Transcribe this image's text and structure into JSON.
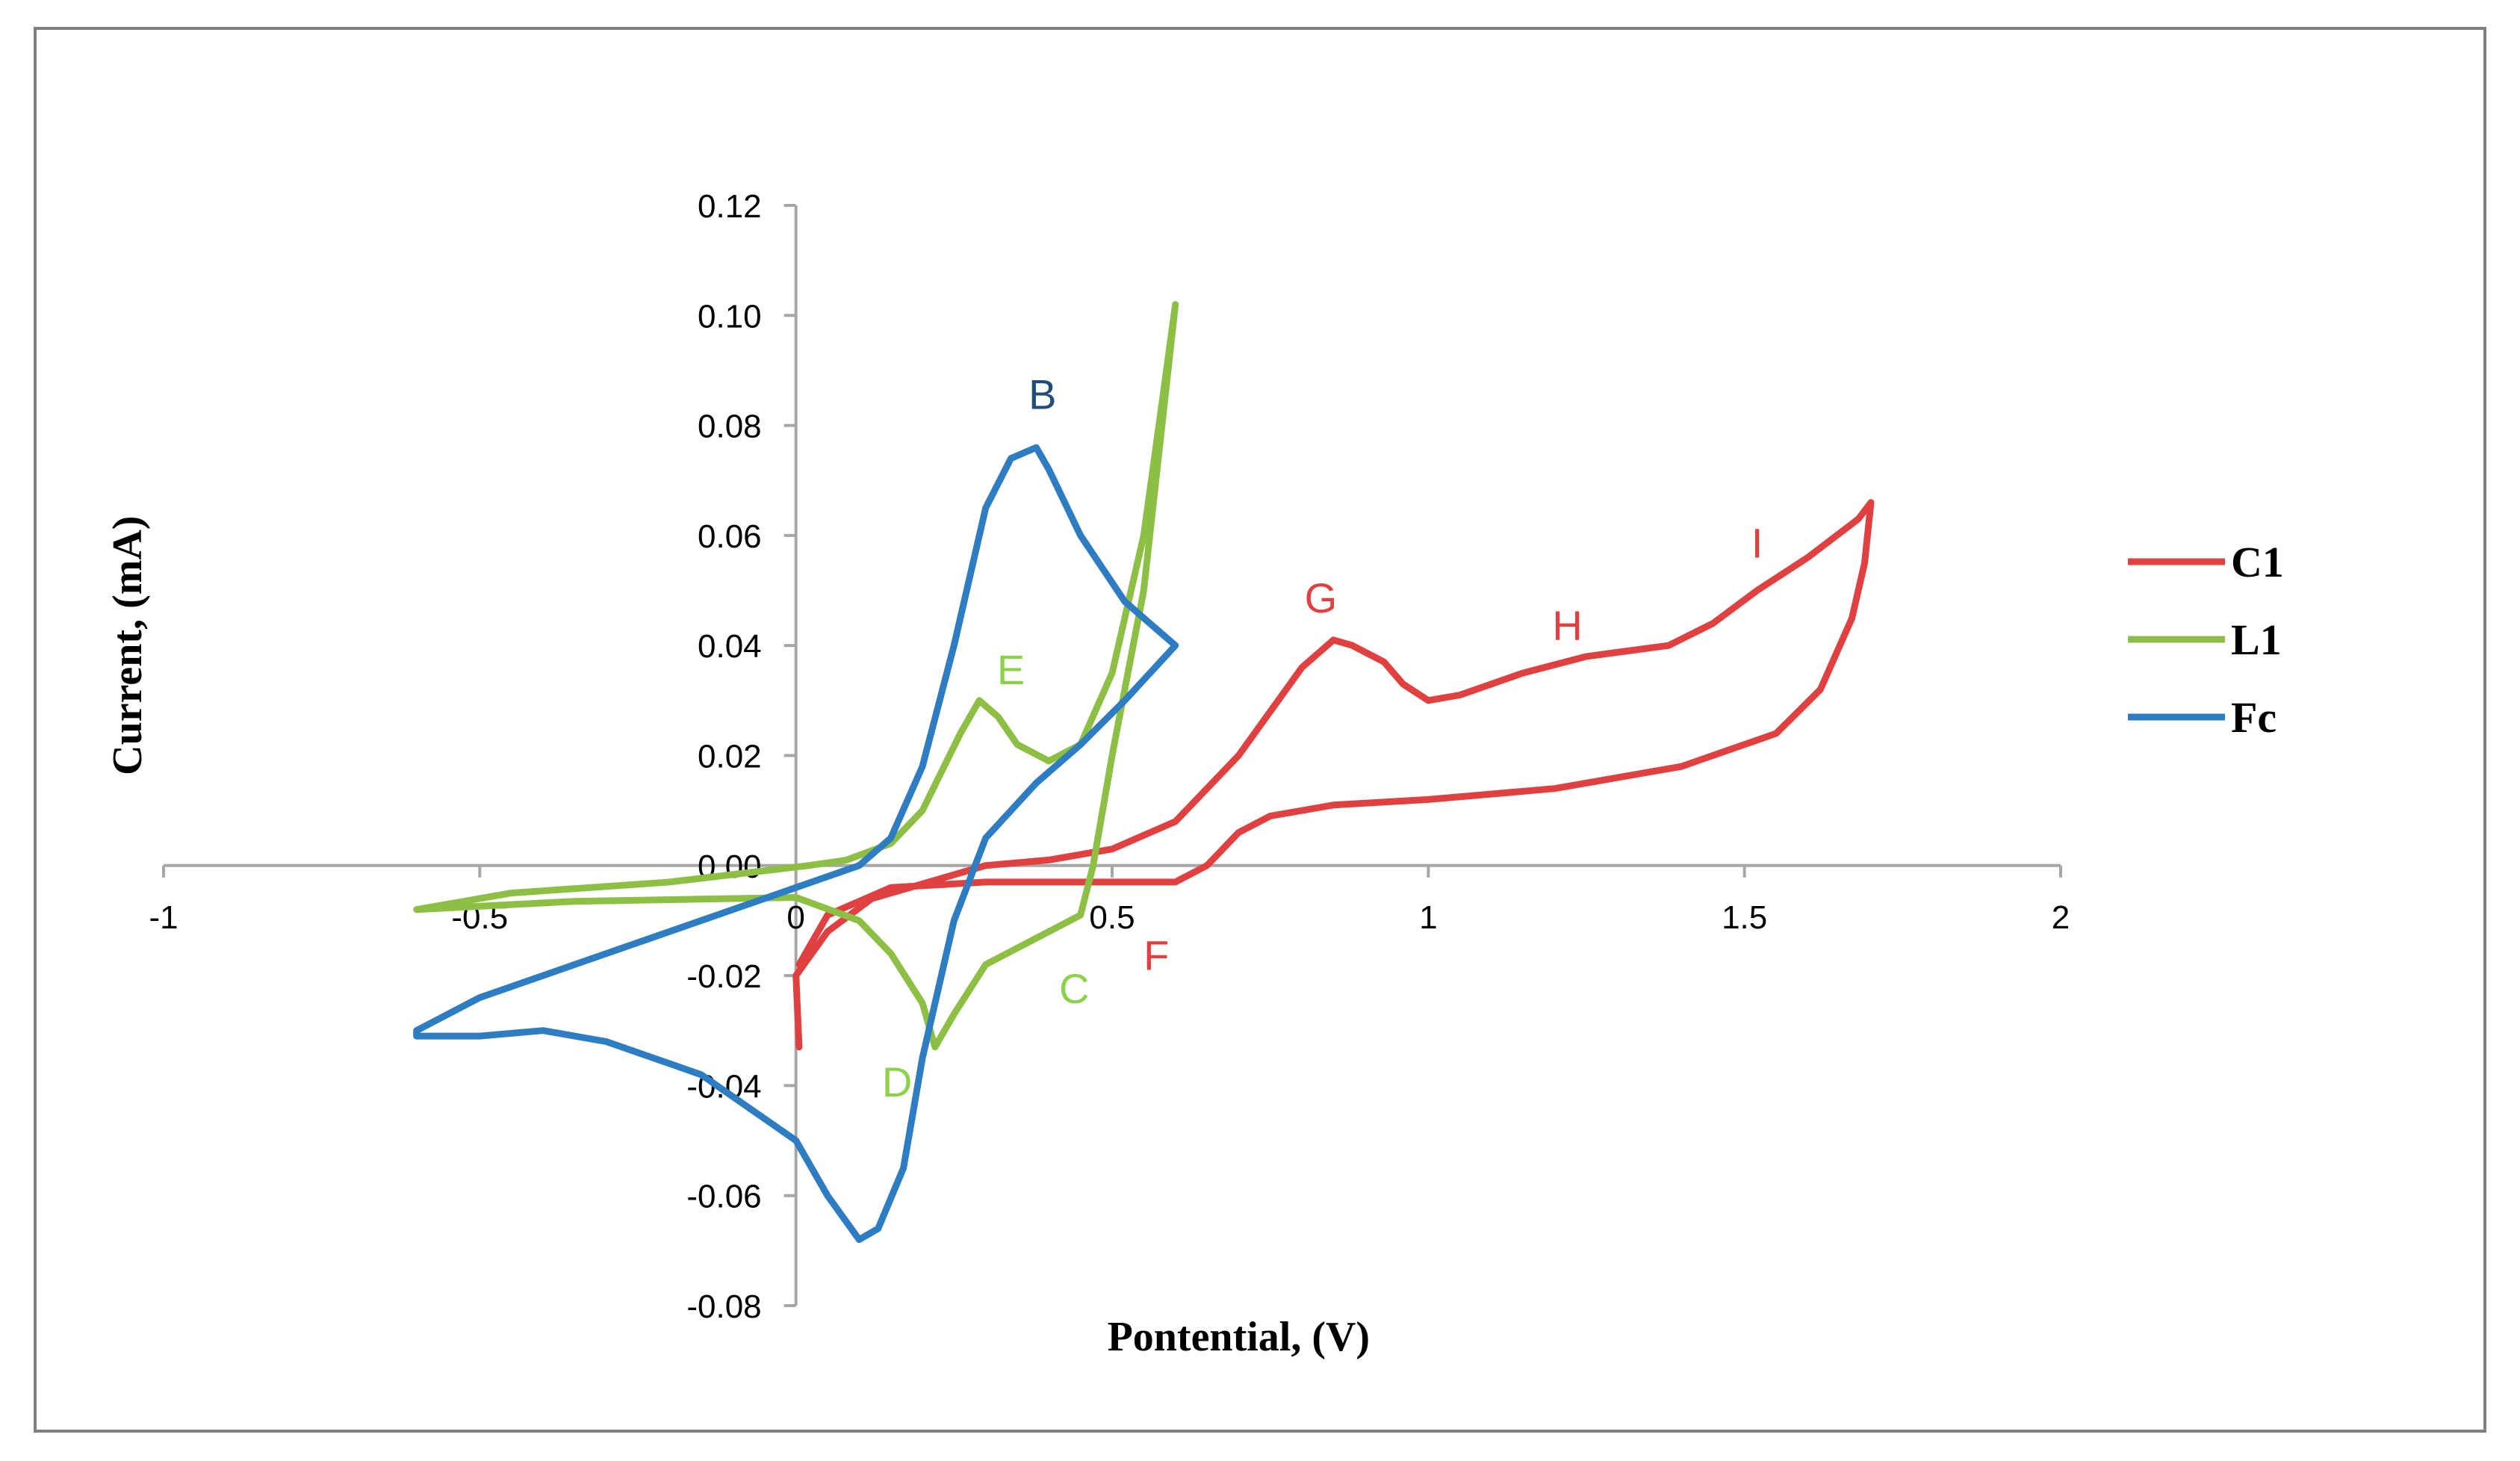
{
  "chart_data": {
    "type": "line",
    "title": "",
    "xlabel": "Pontential, (V)",
    "ylabel": "Current, (mA)",
    "xlim": [
      -1,
      2
    ],
    "ylim": [
      -0.08,
      0.12
    ],
    "xticks": [
      -1,
      -0.5,
      0,
      0.5,
      1,
      1.5,
      2
    ],
    "xtick_labels": [
      "-1",
      "-0.5",
      "0",
      "0.5",
      "1",
      "1.5",
      "2"
    ],
    "yticks": [
      0.12,
      0.1,
      0.08,
      0.06,
      0.04,
      0.02,
      0.0,
      -0.02,
      -0.04,
      -0.06,
      -0.08
    ],
    "ytick_labels": [
      "0.12",
      "0.10",
      "0.08",
      "0.06",
      "0.04",
      "0.02",
      "0.00",
      "-0.02",
      "-0.04",
      "-0.06",
      "-0.08"
    ],
    "grid": false,
    "legend_position": "right",
    "series": [
      {
        "name": "C1",
        "color": "#e0403f",
        "points": [
          [
            0.005,
            -0.033
          ],
          [
            0.0,
            -0.02
          ],
          [
            0.05,
            -0.012
          ],
          [
            0.12,
            -0.006
          ],
          [
            0.3,
            0.0
          ],
          [
            0.4,
            0.001
          ],
          [
            0.5,
            0.003
          ],
          [
            0.6,
            0.008
          ],
          [
            0.7,
            0.02
          ],
          [
            0.75,
            0.028
          ],
          [
            0.8,
            0.036
          ],
          [
            0.85,
            0.041
          ],
          [
            0.88,
            0.04
          ],
          [
            0.93,
            0.037
          ],
          [
            0.96,
            0.033
          ],
          [
            1.0,
            0.03
          ],
          [
            1.05,
            0.031
          ],
          [
            1.15,
            0.035
          ],
          [
            1.25,
            0.038
          ],
          [
            1.38,
            0.04
          ],
          [
            1.45,
            0.044
          ],
          [
            1.52,
            0.05
          ],
          [
            1.6,
            0.056
          ],
          [
            1.68,
            0.063
          ],
          [
            1.7,
            0.066
          ],
          [
            1.69,
            0.055
          ],
          [
            1.67,
            0.045
          ],
          [
            1.62,
            0.032
          ],
          [
            1.55,
            0.024
          ],
          [
            1.4,
            0.018
          ],
          [
            1.2,
            0.014
          ],
          [
            1.0,
            0.012
          ],
          [
            0.85,
            0.011
          ],
          [
            0.75,
            0.009
          ],
          [
            0.7,
            0.006
          ],
          [
            0.65,
            0.0
          ],
          [
            0.6,
            -0.003
          ],
          [
            0.5,
            -0.003
          ],
          [
            0.3,
            -0.003
          ],
          [
            0.15,
            -0.004
          ],
          [
            0.05,
            -0.009
          ],
          [
            0.005,
            -0.018
          ]
        ]
      },
      {
        "name": "L1",
        "color": "#8cbf44",
        "points": [
          [
            0.02,
            -0.0
          ],
          [
            -0.2,
            -0.003
          ],
          [
            -0.45,
            -0.005
          ],
          [
            -0.6,
            -0.008
          ],
          [
            -0.35,
            -0.0065
          ],
          [
            0.0,
            -0.0058
          ],
          [
            0.1,
            -0.01
          ],
          [
            0.15,
            -0.016
          ],
          [
            0.2,
            -0.025
          ],
          [
            0.22,
            -0.033
          ],
          [
            0.25,
            -0.027
          ],
          [
            0.3,
            -0.018
          ],
          [
            0.4,
            -0.012
          ],
          [
            0.45,
            -0.009
          ],
          [
            0.47,
            0.0
          ],
          [
            0.5,
            0.02
          ],
          [
            0.55,
            0.05
          ],
          [
            0.6,
            0.102
          ],
          [
            0.58,
            0.085
          ],
          [
            0.55,
            0.06
          ],
          [
            0.5,
            0.035
          ],
          [
            0.45,
            0.022
          ],
          [
            0.4,
            0.019
          ],
          [
            0.35,
            0.022
          ],
          [
            0.32,
            0.027
          ],
          [
            0.29,
            0.03
          ],
          [
            0.26,
            0.024
          ],
          [
            0.2,
            0.01
          ],
          [
            0.15,
            0.004
          ],
          [
            0.08,
            0.001
          ],
          [
            0.02,
            0.0
          ]
        ]
      },
      {
        "name": "Fc",
        "color": "#2e7cc1",
        "points": [
          [
            0.6,
            0.04
          ],
          [
            0.52,
            0.048
          ],
          [
            0.45,
            0.06
          ],
          [
            0.4,
            0.072
          ],
          [
            0.38,
            0.076
          ],
          [
            0.34,
            0.074
          ],
          [
            0.3,
            0.065
          ],
          [
            0.25,
            0.04
          ],
          [
            0.2,
            0.018
          ],
          [
            0.15,
            0.005
          ],
          [
            0.1,
            0.0
          ],
          [
            0.0,
            -0.004
          ],
          [
            -0.15,
            -0.01
          ],
          [
            -0.35,
            -0.018
          ],
          [
            -0.5,
            -0.024
          ],
          [
            -0.6,
            -0.03
          ],
          [
            -0.6,
            -0.031
          ],
          [
            -0.5,
            -0.031
          ],
          [
            -0.4,
            -0.03
          ],
          [
            -0.3,
            -0.032
          ],
          [
            -0.15,
            -0.038
          ],
          [
            0.0,
            -0.05
          ],
          [
            0.05,
            -0.06
          ],
          [
            0.1,
            -0.068
          ],
          [
            0.13,
            -0.066
          ],
          [
            0.17,
            -0.055
          ],
          [
            0.2,
            -0.035
          ],
          [
            0.25,
            -0.01
          ],
          [
            0.3,
            0.005
          ],
          [
            0.38,
            0.015
          ],
          [
            0.45,
            0.022
          ],
          [
            0.52,
            0.03
          ],
          [
            0.6,
            0.04
          ]
        ]
      }
    ],
    "annotations": [
      {
        "text": "B",
        "x": 0.39,
        "y": 0.083,
        "color": "#1f4e79"
      },
      {
        "text": "E",
        "x": 0.34,
        "y": 0.033,
        "color": "#8cd14a"
      },
      {
        "text": "C",
        "x": 0.44,
        "y": -0.025,
        "color": "#8cd14a"
      },
      {
        "text": "D",
        "x": 0.16,
        "y": -0.042,
        "color": "#8cd14a"
      },
      {
        "text": "F",
        "x": 0.57,
        "y": -0.019,
        "color": "#e0403f"
      },
      {
        "text": "G",
        "x": 0.83,
        "y": 0.046,
        "color": "#e0403f"
      },
      {
        "text": "H",
        "x": 1.22,
        "y": 0.041,
        "color": "#e0403f"
      },
      {
        "text": "I",
        "x": 1.52,
        "y": 0.056,
        "color": "#e0403f"
      }
    ]
  }
}
